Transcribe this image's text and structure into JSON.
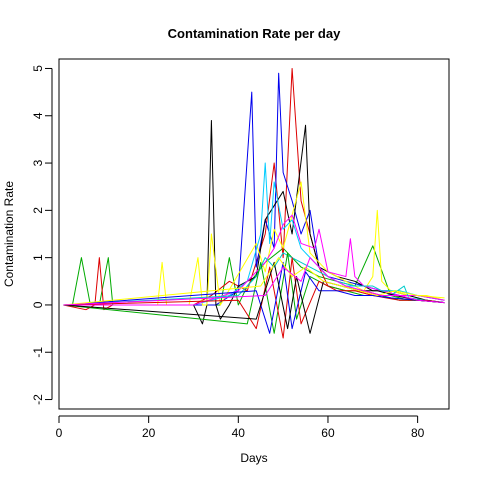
{
  "chart_data": {
    "type": "line",
    "title": "Contamination Rate per day",
    "xlabel": "Days",
    "ylabel": "Contamination Rate",
    "xlim": [
      0,
      87
    ],
    "ylim": [
      -2.2,
      5.2
    ],
    "xticks": [
      0,
      20,
      40,
      60,
      80
    ],
    "yticks": [
      -2,
      -1,
      0,
      1,
      2,
      3,
      4,
      5
    ],
    "grid": false,
    "series": [
      {
        "color": "#00AA00",
        "x": [
          1,
          3,
          5,
          7,
          9,
          11,
          12,
          14,
          20,
          24,
          29,
          36,
          38,
          40,
          42,
          46,
          50,
          54,
          58,
          62,
          66,
          70,
          74,
          78,
          82,
          86
        ],
        "y": [
          0,
          0,
          1.0,
          0,
          0,
          1.0,
          0,
          0,
          0,
          0,
          0,
          0,
          1.0,
          0,
          0.4,
          0.9,
          1.2,
          0.8,
          0.6,
          0.5,
          0.4,
          1.25,
          0.2,
          0.1,
          0.1,
          0.05
        ]
      },
      {
        "color": "#DD0000",
        "x": [
          1,
          6,
          8,
          9,
          10,
          12,
          30,
          34,
          38,
          42,
          46,
          48,
          50,
          52,
          54,
          56,
          58,
          60,
          64,
          68,
          72,
          76,
          80,
          86
        ],
        "y": [
          0,
          -0.1,
          0,
          1.0,
          -0.1,
          0,
          0,
          0.2,
          0.5,
          0.3,
          1.5,
          3.0,
          1.0,
          5.0,
          2.2,
          1.5,
          0.8,
          0.4,
          0.3,
          0.3,
          0.2,
          0.2,
          0.1,
          0.05
        ]
      },
      {
        "color": "#0000EE",
        "x": [
          1,
          30,
          35,
          40,
          43,
          44,
          46,
          48,
          49,
          50,
          52,
          54,
          56,
          58,
          60,
          64,
          68,
          72,
          76,
          80,
          86
        ],
        "y": [
          0,
          0,
          0,
          0.3,
          4.5,
          0.8,
          1.8,
          1.2,
          4.9,
          2.8,
          2.2,
          1.5,
          2.0,
          0.8,
          0.6,
          0.5,
          0.4,
          0.3,
          0.2,
          0.2,
          0.1
        ]
      },
      {
        "color": "#000000",
        "x": [
          1,
          30,
          32,
          33,
          34,
          35,
          36,
          38,
          40,
          44,
          46,
          50,
          52,
          55,
          56,
          58,
          62,
          66,
          70,
          74,
          78,
          82,
          86
        ],
        "y": [
          0,
          0,
          -0.4,
          0,
          3.9,
          0,
          -0.3,
          0,
          0.4,
          0.6,
          1.8,
          2.4,
          1.5,
          3.8,
          1.5,
          0.8,
          0.6,
          0.5,
          0.3,
          0.3,
          0.2,
          0.1,
          0.05
        ]
      },
      {
        "color": "#FFFF00",
        "x": [
          1,
          20,
          22,
          23,
          24,
          26,
          29,
          31,
          32,
          33,
          34,
          36,
          44,
          46,
          48,
          50,
          54,
          56,
          60,
          64,
          68,
          70,
          71,
          72,
          74,
          78,
          82,
          86
        ],
        "y": [
          0,
          0,
          0,
          0.9,
          0,
          0,
          0,
          1.0,
          0,
          0,
          1.5,
          0,
          1.3,
          0.7,
          1.6,
          1.2,
          2.6,
          1.1,
          0.7,
          0.5,
          0.3,
          0.6,
          2.0,
          0.5,
          0.3,
          0.2,
          0.2,
          0.1
        ]
      },
      {
        "color": "#00CCFF",
        "x": [
          1,
          30,
          38,
          42,
          45,
          46,
          47,
          48,
          50,
          52,
          54,
          56,
          60,
          64,
          68,
          72,
          76,
          80,
          86
        ],
        "y": [
          0,
          0,
          0.2,
          0.5,
          1.5,
          3.0,
          1.3,
          2.6,
          1.6,
          1.8,
          1.2,
          1.0,
          0.6,
          0.4,
          0.4,
          0.3,
          0.3,
          0.2,
          0.1
        ]
      },
      {
        "color": "#FF00FF",
        "x": [
          1,
          30,
          40,
          46,
          48,
          50,
          52,
          54,
          57,
          58,
          60,
          64,
          65,
          66,
          68,
          72,
          76,
          80,
          86
        ],
        "y": [
          0,
          0,
          0.3,
          0.9,
          1.2,
          1.7,
          1.9,
          1.3,
          1.2,
          1.6,
          0.7,
          0.6,
          1.4,
          0.6,
          0.4,
          0.3,
          0.2,
          0.2,
          0.1
        ]
      },
      {
        "color": "#00CCCC",
        "x": [
          1,
          40,
          44,
          46,
          48,
          50,
          54,
          58,
          62,
          66,
          70,
          74,
          77,
          78,
          82,
          86
        ],
        "y": [
          0,
          0.2,
          0.6,
          1.0,
          0.8,
          1.1,
          0.9,
          0.7,
          0.5,
          0.4,
          0.4,
          0.2,
          0.4,
          0.15,
          0.1,
          0.05
        ]
      },
      {
        "color": "#00AA00",
        "x": [
          1,
          42,
          45,
          48,
          51,
          53,
          56,
          60,
          64,
          68,
          72,
          76,
          80,
          86
        ],
        "y": [
          0,
          -0.4,
          0.9,
          -0.6,
          1.1,
          -0.3,
          0.6,
          0.4,
          0.3,
          0.2,
          0.2,
          0.1,
          0.1,
          0.05
        ]
      },
      {
        "color": "#DD0000",
        "x": [
          1,
          40,
          44,
          47,
          50,
          52,
          54,
          58,
          62,
          66,
          70,
          76,
          82,
          86
        ],
        "y": [
          0,
          0.1,
          -0.5,
          0.8,
          -0.7,
          1.0,
          -0.4,
          0.5,
          0.3,
          0.3,
          0.2,
          0.1,
          0.1,
          0.05
        ]
      },
      {
        "color": "#0000EE",
        "x": [
          1,
          44,
          47,
          50,
          52,
          55,
          58,
          62,
          66,
          70,
          74,
          80,
          86
        ],
        "y": [
          0,
          0.3,
          -0.6,
          0.9,
          -0.5,
          0.7,
          0.3,
          0.3,
          0.2,
          0.2,
          0.15,
          0.1,
          0.05
        ]
      },
      {
        "color": "#000000",
        "x": [
          1,
          44,
          48,
          51,
          53,
          56,
          59,
          63,
          67,
          71,
          75,
          80,
          86
        ],
        "y": [
          0,
          -0.3,
          0.9,
          -0.5,
          0.6,
          -0.6,
          0.5,
          0.4,
          0.3,
          0.3,
          0.2,
          0.1,
          0.05
        ]
      },
      {
        "color": "#FFFF00",
        "x": [
          1,
          45,
          49,
          52,
          55,
          59,
          63,
          67,
          71,
          75,
          80,
          86
        ],
        "y": [
          0,
          0.4,
          1.0,
          0.6,
          0.8,
          0.5,
          0.4,
          0.3,
          0.2,
          0.3,
          0.2,
          0.15
        ]
      },
      {
        "color": "#FF00FF",
        "x": [
          1,
          46,
          50,
          54,
          56,
          60,
          64,
          68,
          72,
          76,
          80,
          86
        ],
        "y": [
          0,
          0.2,
          0.8,
          0.5,
          1.0,
          0.6,
          0.4,
          0.3,
          0.2,
          0.2,
          0.1,
          0.05
        ]
      }
    ]
  }
}
